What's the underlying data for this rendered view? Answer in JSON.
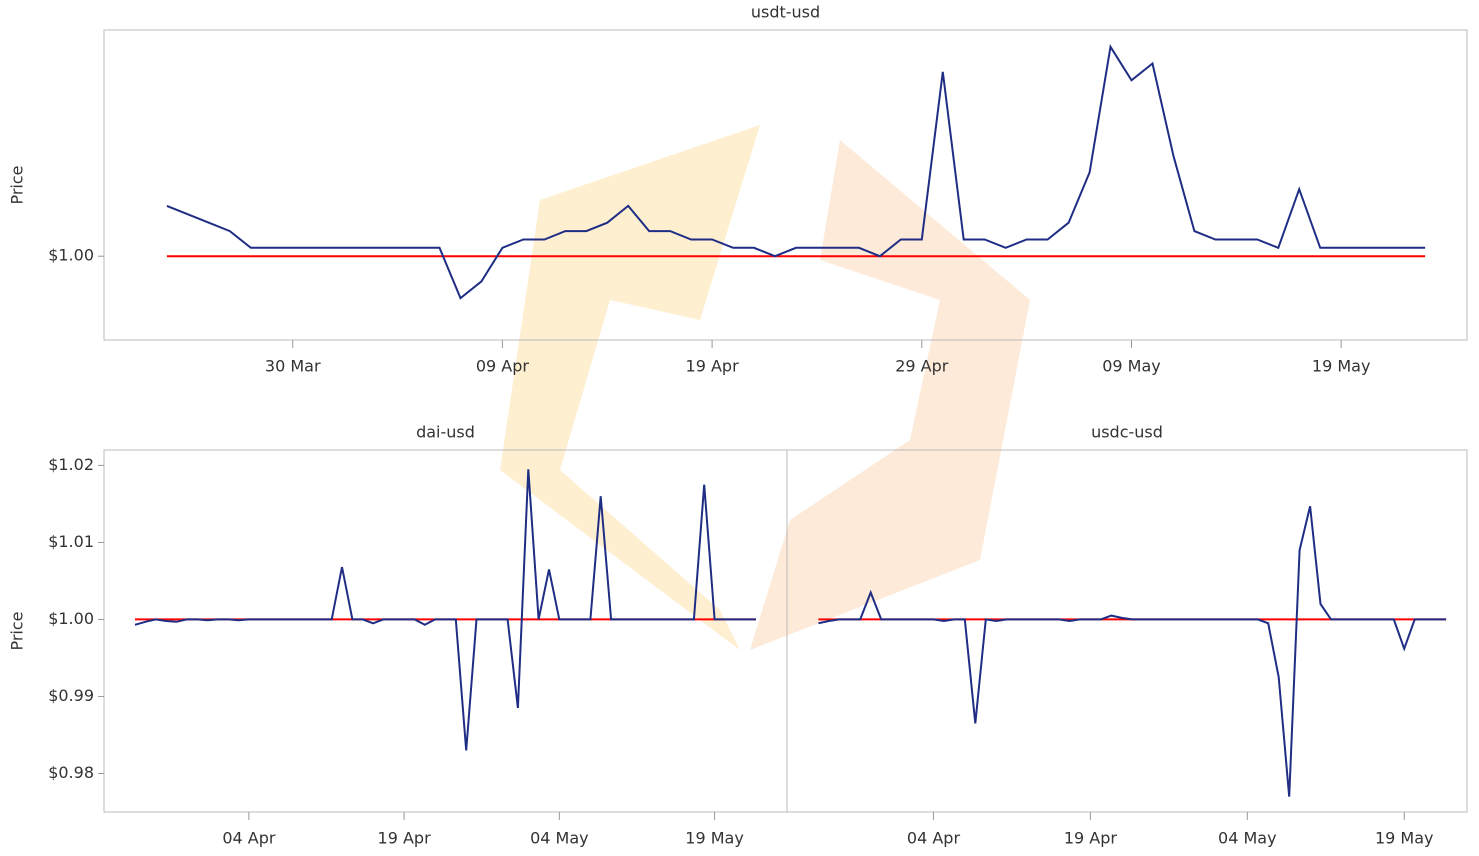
{
  "chart_data": [
    {
      "type": "line",
      "title": "usdt-usd",
      "ylabel": "Price",
      "x": [
        "24 Mar",
        "25 Mar",
        "26 Mar",
        "27 Mar",
        "28 Mar",
        "29 Mar",
        "30 Mar",
        "31 Mar",
        "01 Apr",
        "02 Apr",
        "03 Apr",
        "04 Apr",
        "05 Apr",
        "06 Apr",
        "07 Apr",
        "08 Apr",
        "09 Apr",
        "10 Apr",
        "11 Apr",
        "12 Apr",
        "13 Apr",
        "14 Apr",
        "15 Apr",
        "16 Apr",
        "17 Apr",
        "18 Apr",
        "19 Apr",
        "20 Apr",
        "21 Apr",
        "22 Apr",
        "23 Apr",
        "24 Apr",
        "25 Apr",
        "26 Apr",
        "27 Apr",
        "28 Apr",
        "29 Apr",
        "30 Apr",
        "01 May",
        "02 May",
        "03 May",
        "04 May",
        "05 May",
        "06 May",
        "07 May",
        "08 May",
        "09 May",
        "10 May",
        "11 May",
        "12 May",
        "13 May",
        "14 May",
        "15 May",
        "16 May",
        "17 May",
        "18 May",
        "19 May",
        "20 May",
        "21 May",
        "22 May",
        "23 May"
      ],
      "xlim": [
        "21 Mar",
        "25 May"
      ],
      "xticks": [
        "30 Mar",
        "09 Apr",
        "19 Apr",
        "29 Apr",
        "09 May",
        "19 May"
      ],
      "ylim": [
        0.999,
        1.0027
      ],
      "yticks": [
        {
          "value": 1,
          "label": "$1.00"
        }
      ],
      "series": [
        {
          "color": "#1f2d84",
          "values": [
            1.0006,
            1.0005,
            1.0004,
            1.0003,
            1.0001,
            1.0001,
            1.0001,
            1.0001,
            1.0001,
            1.0001,
            1.0001,
            1.0001,
            1.0001,
            1.0001,
            0.9995,
            0.9997,
            1.0001,
            1.0002,
            1.0002,
            1.0003,
            1.0003,
            1.0004,
            1.0006,
            1.0003,
            1.0003,
            1.0002,
            1.0002,
            1.0001,
            1.0001,
            1.0,
            1.0001,
            1.0001,
            1.0001,
            1.0001,
            1.0,
            1.0002,
            1.0002,
            1.0022,
            1.0002,
            1.0002,
            1.0001,
            1.0002,
            1.0002,
            1.0004,
            1.001,
            1.0025,
            1.0021,
            1.0023,
            1.0012,
            1.0003,
            1.0002,
            1.0002,
            1.0002,
            1.0001,
            1.0008,
            1.0001,
            1.0001,
            1.0001,
            1.0001,
            1.0001,
            1.0001
          ]
        },
        {
          "color": "#ff0000",
          "values": [
            1,
            1,
            1,
            1,
            1,
            1,
            1,
            1,
            1,
            1,
            1,
            1,
            1,
            1,
            1,
            1,
            1,
            1,
            1,
            1,
            1,
            1,
            1,
            1,
            1,
            1,
            1,
            1,
            1,
            1,
            1,
            1,
            1,
            1,
            1,
            1,
            1,
            1,
            1,
            1,
            1,
            1,
            1,
            1,
            1,
            1,
            1,
            1,
            1,
            1,
            1,
            1,
            1,
            1,
            1,
            1,
            1,
            1,
            1,
            1,
            1
          ]
        }
      ]
    },
    {
      "type": "line",
      "title": "dai-usd",
      "ylabel": "Price",
      "x": [
        "24 Mar",
        "25 Mar",
        "26 Mar",
        "27 Mar",
        "28 Mar",
        "29 Mar",
        "30 Mar",
        "31 Mar",
        "01 Apr",
        "02 Apr",
        "03 Apr",
        "04 Apr",
        "05 Apr",
        "06 Apr",
        "07 Apr",
        "08 Apr",
        "09 Apr",
        "10 Apr",
        "11 Apr",
        "12 Apr",
        "13 Apr",
        "14 Apr",
        "15 Apr",
        "16 Apr",
        "17 Apr",
        "18 Apr",
        "19 Apr",
        "20 Apr",
        "21 Apr",
        "22 Apr",
        "23 Apr",
        "24 Apr",
        "25 Apr",
        "26 Apr",
        "27 Apr",
        "28 Apr",
        "29 Apr",
        "30 Apr",
        "01 May",
        "02 May",
        "03 May",
        "04 May",
        "05 May",
        "06 May",
        "07 May",
        "08 May",
        "09 May",
        "10 May",
        "11 May",
        "12 May",
        "13 May",
        "14 May",
        "15 May",
        "16 May",
        "17 May",
        "18 May",
        "19 May",
        "20 May",
        "21 May",
        "22 May",
        "23 May"
      ],
      "xlim": [
        "21 Mar",
        "26 May"
      ],
      "xticks": [
        "04 Apr",
        "19 Apr",
        "04 May",
        "19 May"
      ],
      "ylim": [
        0.975,
        1.022
      ],
      "yticks": [
        {
          "value": 0.98,
          "label": "$0.98"
        },
        {
          "value": 0.99,
          "label": "$0.99"
        },
        {
          "value": 1,
          "label": "$1.00"
        },
        {
          "value": 1.01,
          "label": "$1.01"
        },
        {
          "value": 1.02,
          "label": "$1.02"
        }
      ],
      "series": [
        {
          "color": "#1f2d84",
          "values": [
            0.9993,
            0.9997,
            1.0,
            0.9998,
            0.9997,
            1.0,
            1.0,
            0.9999,
            1.0,
            1.0,
            0.9999,
            1.0,
            1.0,
            1.0,
            1.0,
            1.0,
            1.0,
            1.0,
            1.0,
            1.0,
            1.0068,
            1.0,
            1.0,
            0.9995,
            1.0,
            1.0,
            1.0,
            1.0,
            0.9993,
            1.0,
            1.0,
            1.0,
            0.983,
            1.0,
            1.0,
            1.0,
            1.0,
            0.9885,
            1.0195,
            1.0,
            1.0065,
            1.0,
            1.0,
            1.0,
            1.0,
            1.016,
            1.0,
            1.0,
            1.0,
            1.0,
            1.0,
            1.0,
            1.0,
            1.0,
            1.0,
            1.0175,
            1.0,
            1.0,
            1.0,
            1.0,
            1.0
          ]
        },
        {
          "color": "#ff0000",
          "values": [
            1,
            1,
            1,
            1,
            1,
            1,
            1,
            1,
            1,
            1,
            1,
            1,
            1,
            1,
            1,
            1,
            1,
            1,
            1,
            1,
            1,
            1,
            1,
            1,
            1,
            1,
            1,
            1,
            1,
            1,
            1,
            1,
            1,
            1,
            1,
            1,
            1,
            1,
            1,
            1,
            1,
            1,
            1,
            1,
            1,
            1,
            1,
            1,
            1,
            1,
            1,
            1,
            1,
            1,
            1,
            1,
            1,
            1,
            1,
            1,
            1
          ]
        }
      ]
    },
    {
      "type": "line",
      "title": "usdc-usd",
      "x": [
        "24 Mar",
        "25 Mar",
        "26 Mar",
        "27 Mar",
        "28 Mar",
        "29 Mar",
        "30 Mar",
        "31 Mar",
        "01 Apr",
        "02 Apr",
        "03 Apr",
        "04 Apr",
        "05 Apr",
        "06 Apr",
        "07 Apr",
        "08 Apr",
        "09 Apr",
        "10 Apr",
        "11 Apr",
        "12 Apr",
        "13 Apr",
        "14 Apr",
        "15 Apr",
        "16 Apr",
        "17 Apr",
        "18 Apr",
        "19 Apr",
        "20 Apr",
        "21 Apr",
        "22 Apr",
        "23 Apr",
        "24 Apr",
        "25 Apr",
        "26 Apr",
        "27 Apr",
        "28 Apr",
        "29 Apr",
        "30 Apr",
        "01 May",
        "02 May",
        "03 May",
        "04 May",
        "05 May",
        "06 May",
        "07 May",
        "08 May",
        "09 May",
        "10 May",
        "11 May",
        "12 May",
        "13 May",
        "14 May",
        "15 May",
        "16 May",
        "17 May",
        "18 May",
        "19 May",
        "20 May",
        "21 May",
        "22 May",
        "23 May"
      ],
      "xlim": [
        "21 Mar",
        "25 May"
      ],
      "xticks": [
        "04 Apr",
        "19 Apr",
        "04 May",
        "19 May"
      ],
      "ylim": [
        0.975,
        1.022
      ],
      "series": [
        {
          "color": "#1f2d84",
          "values": [
            0.9995,
            0.9998,
            1.0,
            1.0,
            1.0,
            1.0035,
            1.0,
            1.0,
            1.0,
            1.0,
            1.0,
            1.0,
            0.9998,
            1.0,
            1.0,
            0.9865,
            1.0,
            0.9998,
            1.0,
            1.0,
            1.0,
            1.0,
            1.0,
            1.0,
            0.9998,
            1.0,
            1.0,
            1.0,
            1.0005,
            1.0002,
            1.0,
            1.0,
            1.0,
            1.0,
            1.0,
            1.0,
            1.0,
            1.0,
            1.0,
            1.0,
            1.0,
            1.0,
            1.0,
            0.9995,
            0.9925,
            0.977,
            1.009,
            1.0147,
            1.002,
            1.0,
            1.0,
            1.0,
            1.0,
            1.0,
            1.0,
            1.0,
            0.9962,
            1.0,
            1.0,
            1.0,
            1.0
          ]
        },
        {
          "color": "#ff0000",
          "values": [
            1,
            1,
            1,
            1,
            1,
            1,
            1,
            1,
            1,
            1,
            1,
            1,
            1,
            1,
            1,
            1,
            1,
            1,
            1,
            1,
            1,
            1,
            1,
            1,
            1,
            1,
            1,
            1,
            1,
            1,
            1,
            1,
            1,
            1,
            1,
            1,
            1,
            1,
            1,
            1,
            1,
            1,
            1,
            1,
            1,
            1,
            1,
            1,
            1,
            1,
            1,
            1,
            1,
            1,
            1,
            1,
            1,
            1,
            1,
            1,
            1
          ]
        }
      ]
    }
  ]
}
